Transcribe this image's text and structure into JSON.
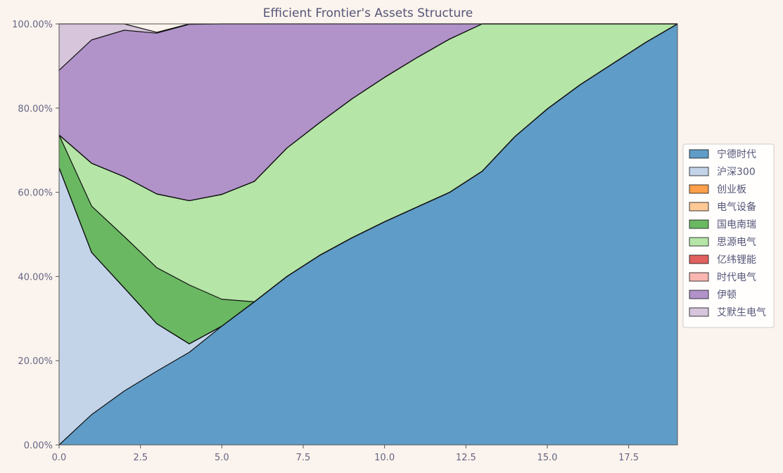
{
  "colors": {
    "background": "#fbf3ed",
    "text": "#666685",
    "axis": "#555555",
    "series_edge": "#111111",
    "legend_bg": "#ffffff",
    "legend_border": "#cccccc"
  },
  "chart_data": {
    "type": "area",
    "stacked": true,
    "title": "Efficient Frontier's Assets Structure",
    "xlabel": "",
    "ylabel": "",
    "xlim": [
      0,
      19
    ],
    "ylim": [
      0,
      100
    ],
    "xticks": [
      0.0,
      2.5,
      5.0,
      7.5,
      10.0,
      12.5,
      15.0,
      17.5
    ],
    "xtick_labels": [
      "0.0",
      "2.5",
      "5.0",
      "7.5",
      "10.0",
      "12.5",
      "15.0",
      "17.5"
    ],
    "yticks": [
      0,
      20,
      40,
      60,
      80,
      100
    ],
    "ytick_labels": [
      "0.00%",
      "20.00%",
      "40.00%",
      "60.00%",
      "80.00%",
      "100.00%"
    ],
    "legend_position": "right-center",
    "grid": false,
    "x": [
      0,
      1,
      2,
      3,
      4,
      5,
      6,
      7,
      8,
      9,
      10,
      11,
      12,
      13,
      14,
      15,
      16,
      17,
      18,
      19
    ],
    "series": [
      {
        "name": "宁德时代",
        "color": "#5f9cc7",
        "values": [
          0,
          7.2,
          12.8,
          17.5,
          22,
          28.2,
          34.0,
          40.0,
          45.0,
          49.2,
          53.0,
          56.5,
          60.0,
          65.0,
          73.2,
          79.8,
          85.5,
          90.5,
          95.5,
          100
        ]
      },
      {
        "name": "沪深300",
        "color": "#c3d4e9",
        "values": [
          65.8,
          38.5,
          24.5,
          11.3,
          2.0,
          0,
          0,
          0,
          0,
          0,
          0,
          0,
          0,
          0,
          0,
          0,
          0,
          0,
          0,
          0
        ]
      },
      {
        "name": "创业板",
        "color": "#ff9f4a",
        "values": [
          0,
          0,
          0,
          0,
          0,
          0,
          0,
          0,
          0,
          0,
          0,
          0,
          0,
          0,
          0,
          0,
          0,
          0,
          0,
          0
        ]
      },
      {
        "name": "电气设备",
        "color": "#fec897",
        "values": [
          0,
          0,
          0,
          0,
          0,
          0,
          0,
          0,
          0,
          0,
          0,
          0,
          0,
          0,
          0,
          0,
          0,
          0,
          0,
          0
        ]
      },
      {
        "name": "国电南瑞",
        "color": "#6ab862",
        "values": [
          7.8,
          11.0,
          12.2,
          13.3,
          14.0,
          6.4,
          0,
          0,
          0,
          0,
          0,
          0,
          0,
          0,
          0,
          0,
          0,
          0,
          0,
          0
        ]
      },
      {
        "name": "思源电气",
        "color": "#b5e5a7",
        "values": [
          0,
          10.2,
          14.2,
          17.5,
          20.0,
          24.9,
          28.6,
          30.5,
          31.5,
          33.0,
          34.3,
          35.5,
          36.4,
          35.0,
          26.8,
          20.2,
          14.5,
          9.5,
          4.5,
          0
        ]
      },
      {
        "name": "亿纬锂能",
        "color": "#e06060",
        "values": [
          0,
          0,
          0,
          0,
          0,
          0,
          0,
          0,
          0,
          0,
          0,
          0,
          0,
          0,
          0,
          0,
          0,
          0,
          0,
          0
        ]
      },
      {
        "name": "时代电气",
        "color": "#fbb6b2",
        "values": [
          0,
          0,
          0,
          0,
          0,
          0,
          0,
          0,
          0,
          0,
          0,
          0,
          0,
          0,
          0,
          0,
          0,
          0,
          0,
          0
        ]
      },
      {
        "name": "伊顿",
        "color": "#b192c9",
        "values": [
          15.4,
          29.3,
          34.8,
          38.2,
          41.9,
          40.5,
          37.4,
          29.5,
          23.5,
          17.8,
          12.7,
          8.0,
          3.6,
          0,
          0,
          0,
          0,
          0,
          0,
          0
        ]
      },
      {
        "name": "艾默生电气",
        "color": "#d6c5db",
        "values": [
          11.0,
          3.8,
          1.5,
          0.2,
          0.1,
          0,
          0,
          0,
          0,
          0,
          0,
          0,
          0,
          0,
          0,
          0,
          0,
          0,
          0,
          0
        ]
      }
    ]
  }
}
